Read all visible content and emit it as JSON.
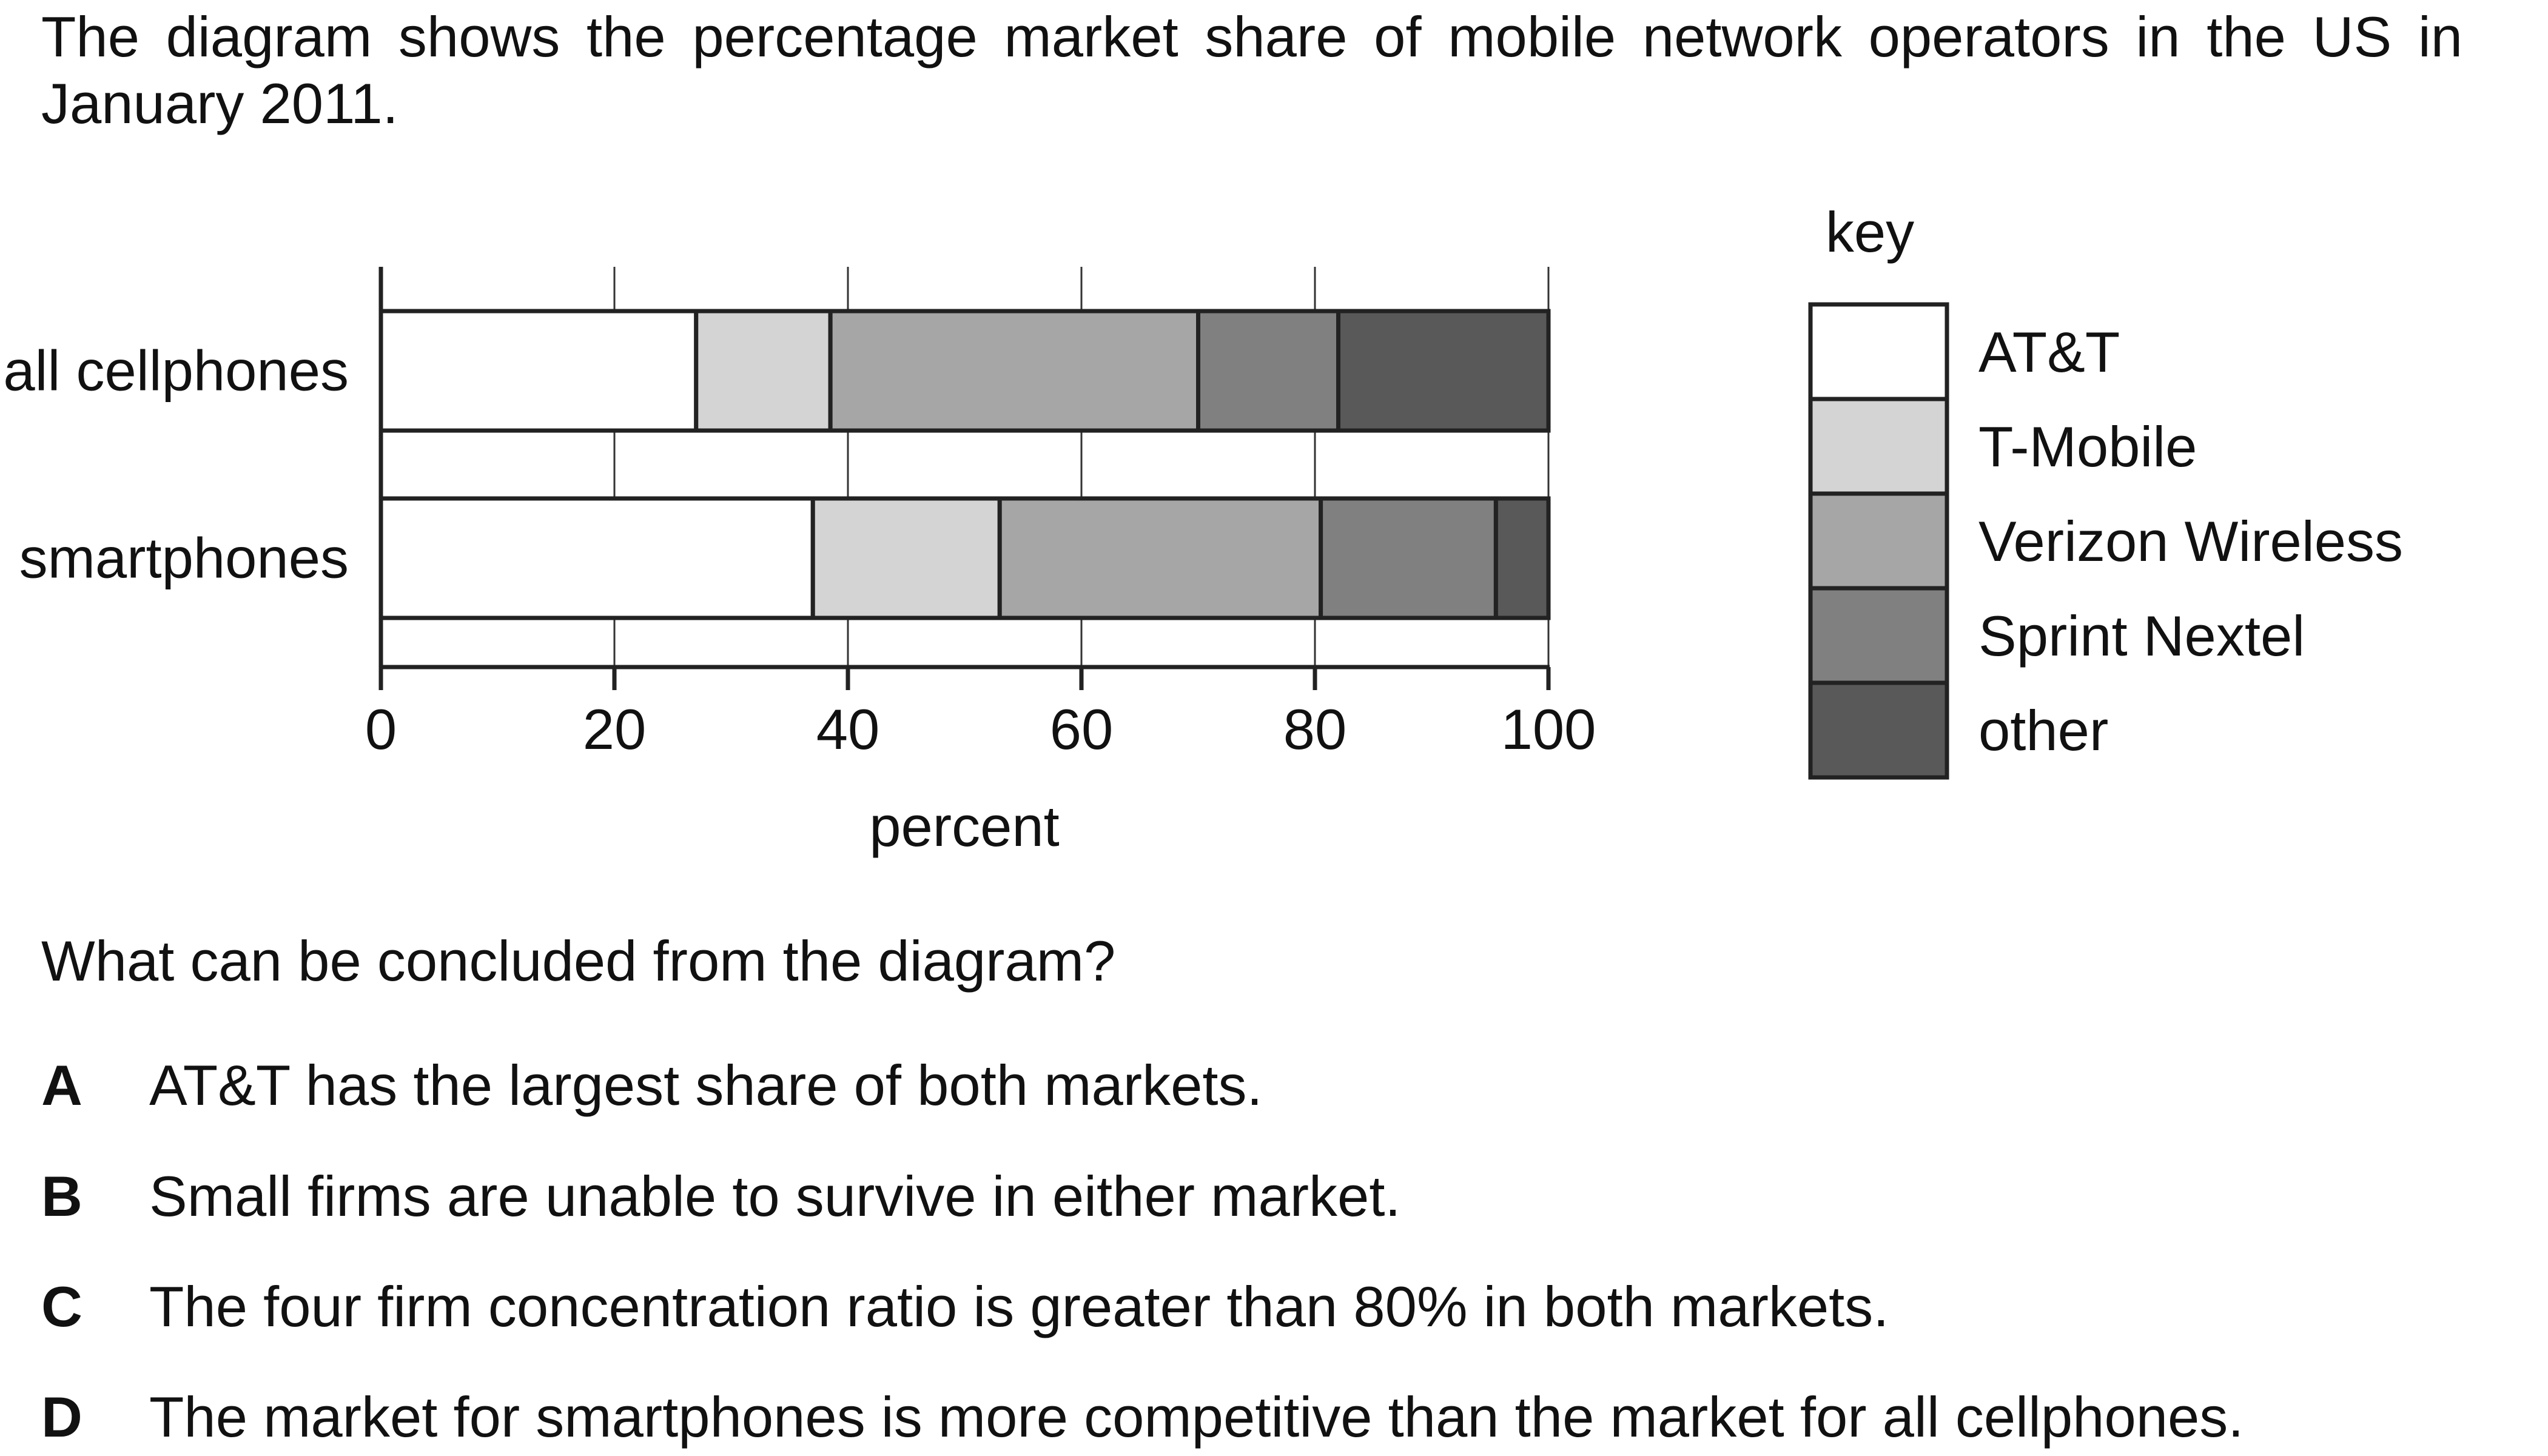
{
  "intro_text": "The diagram shows the percentage market share of mobile network operators in the US in January 2011.",
  "question": "What can be concluded from the diagram?",
  "options": [
    {
      "letter": "A",
      "text": "AT&T has the largest share of both markets."
    },
    {
      "letter": "B",
      "text": "Small firms are unable to survive in either market."
    },
    {
      "letter": "C",
      "text": "The four firm concentration ratio is greater than 80% in both markets."
    },
    {
      "letter": "D",
      "text": "The market for smartphones is more competitive than the market for all cellphones."
    }
  ],
  "chart_data": {
    "type": "bar",
    "orientation": "horizontal",
    "stacked": true,
    "xlabel": "percent",
    "ylabel": "",
    "xlim": [
      0,
      100
    ],
    "xticks": [
      0,
      20,
      40,
      60,
      80,
      100
    ],
    "grid": true,
    "legend_title": "key",
    "legend_position": "right",
    "categories": [
      "all cellphones",
      "smartphones"
    ],
    "series": [
      {
        "name": "AT&T",
        "color": "#ffffff",
        "values": [
          27,
          37
        ]
      },
      {
        "name": "T-Mobile",
        "color": "#d4d4d4",
        "values": [
          11.5,
          16
        ]
      },
      {
        "name": "Verizon Wireless",
        "color": "#a6a6a6",
        "values": [
          31.5,
          27.5
        ]
      },
      {
        "name": "Sprint Nextel",
        "color": "#808080",
        "values": [
          12,
          15
        ]
      },
      {
        "name": "other",
        "color": "#595959",
        "values": [
          18,
          4.5
        ]
      }
    ]
  }
}
